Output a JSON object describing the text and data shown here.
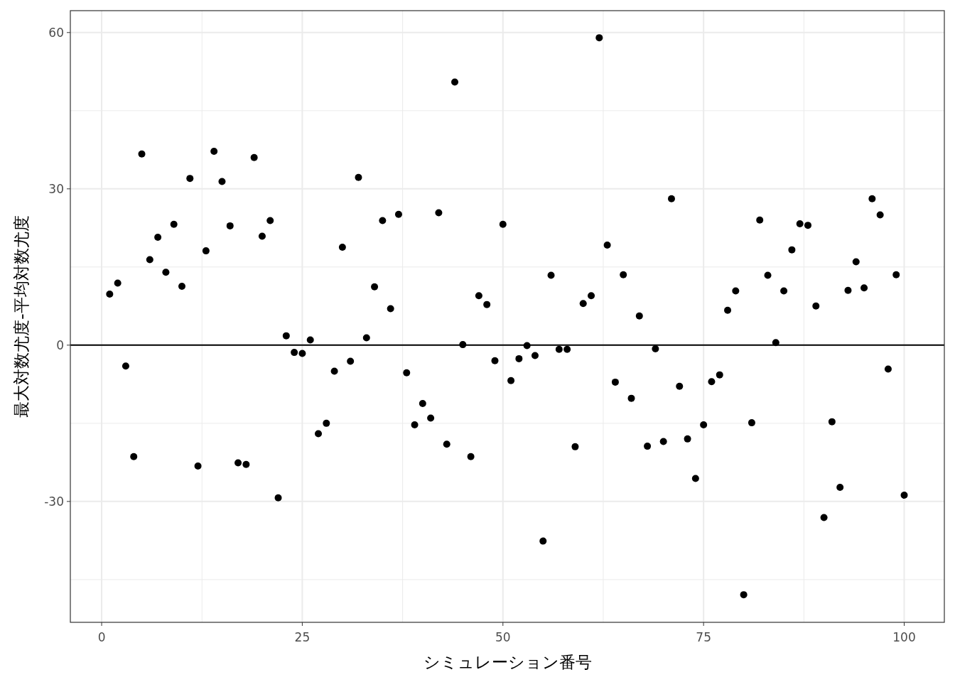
{
  "chart_data": {
    "type": "scatter",
    "xlabel": "シミュレーション番号",
    "ylabel": "最大対数尤度-平均対数尤度",
    "x": [
      1,
      2,
      3,
      4,
      5,
      6,
      7,
      8,
      9,
      10,
      11,
      12,
      13,
      14,
      15,
      16,
      17,
      18,
      19,
      20,
      21,
      22,
      23,
      24,
      25,
      26,
      27,
      28,
      29,
      30,
      31,
      32,
      33,
      34,
      35,
      36,
      37,
      38,
      39,
      40,
      41,
      42,
      43,
      44,
      45,
      46,
      47,
      48,
      49,
      50,
      51,
      52,
      53,
      54,
      55,
      56,
      57,
      58,
      59,
      60,
      61,
      62,
      63,
      64,
      65,
      66,
      67,
      68,
      69,
      70,
      71,
      72,
      73,
      74,
      75,
      76,
      77,
      78,
      79,
      80,
      81,
      82,
      83,
      84,
      85,
      86,
      87,
      88,
      89,
      90,
      91,
      92,
      93,
      94,
      95,
      96,
      97,
      98,
      99,
      100
    ],
    "series": [
      {
        "color": "#000000",
        "values": [
          9.8,
          11.9,
          -4.0,
          -21.4,
          36.7,
          16.4,
          20.7,
          14.0,
          23.2,
          11.3,
          32.0,
          -23.2,
          18.1,
          37.2,
          31.4,
          22.9,
          -22.6,
          -22.9,
          36.0,
          20.9,
          23.9,
          -29.3,
          1.8,
          -1.4,
          -1.6,
          1.0,
          -17.0,
          -15.0,
          -5.0,
          18.8,
          -3.1,
          32.2,
          1.4,
          11.2,
          23.9,
          7.0,
          25.1,
          -5.3,
          -15.3,
          -11.2,
          -14.0,
          25.4,
          -19.0,
          50.5,
          0.1,
          -21.4,
          9.5,
          7.8,
          -3.0,
          23.2,
          -6.8,
          -2.6,
          -0.1,
          -2.0,
          -37.6,
          13.4,
          -0.8,
          -0.8,
          -19.5,
          8.0,
          9.5,
          59.0,
          19.2,
          -7.1,
          13.5,
          -10.2,
          5.6,
          -19.4,
          -0.7,
          -18.5,
          28.1,
          -7.9,
          -18.0,
          -25.6,
          -15.3,
          -7.0,
          -5.7,
          6.7,
          10.4,
          -47.9,
          -14.9,
          24.0,
          13.4,
          0.5,
          10.4,
          18.3,
          23.3,
          23.0,
          7.5,
          -33.1,
          -14.7,
          -27.3,
          10.5,
          16.0,
          11.0,
          28.1,
          25.0,
          -4.6,
          13.5,
          -28.8
        ]
      }
    ],
    "xlim": [
      -3.9,
      105
    ],
    "ylim": [
      -53.2,
      64.2
    ],
    "xticks": [
      0,
      25,
      50,
      75,
      100
    ],
    "yticks": [
      -30,
      0,
      30,
      60
    ],
    "grid": true,
    "marker": "circle",
    "ref_lines": [
      {
        "axis": "y",
        "value": 0,
        "color": "#000000"
      }
    ]
  }
}
